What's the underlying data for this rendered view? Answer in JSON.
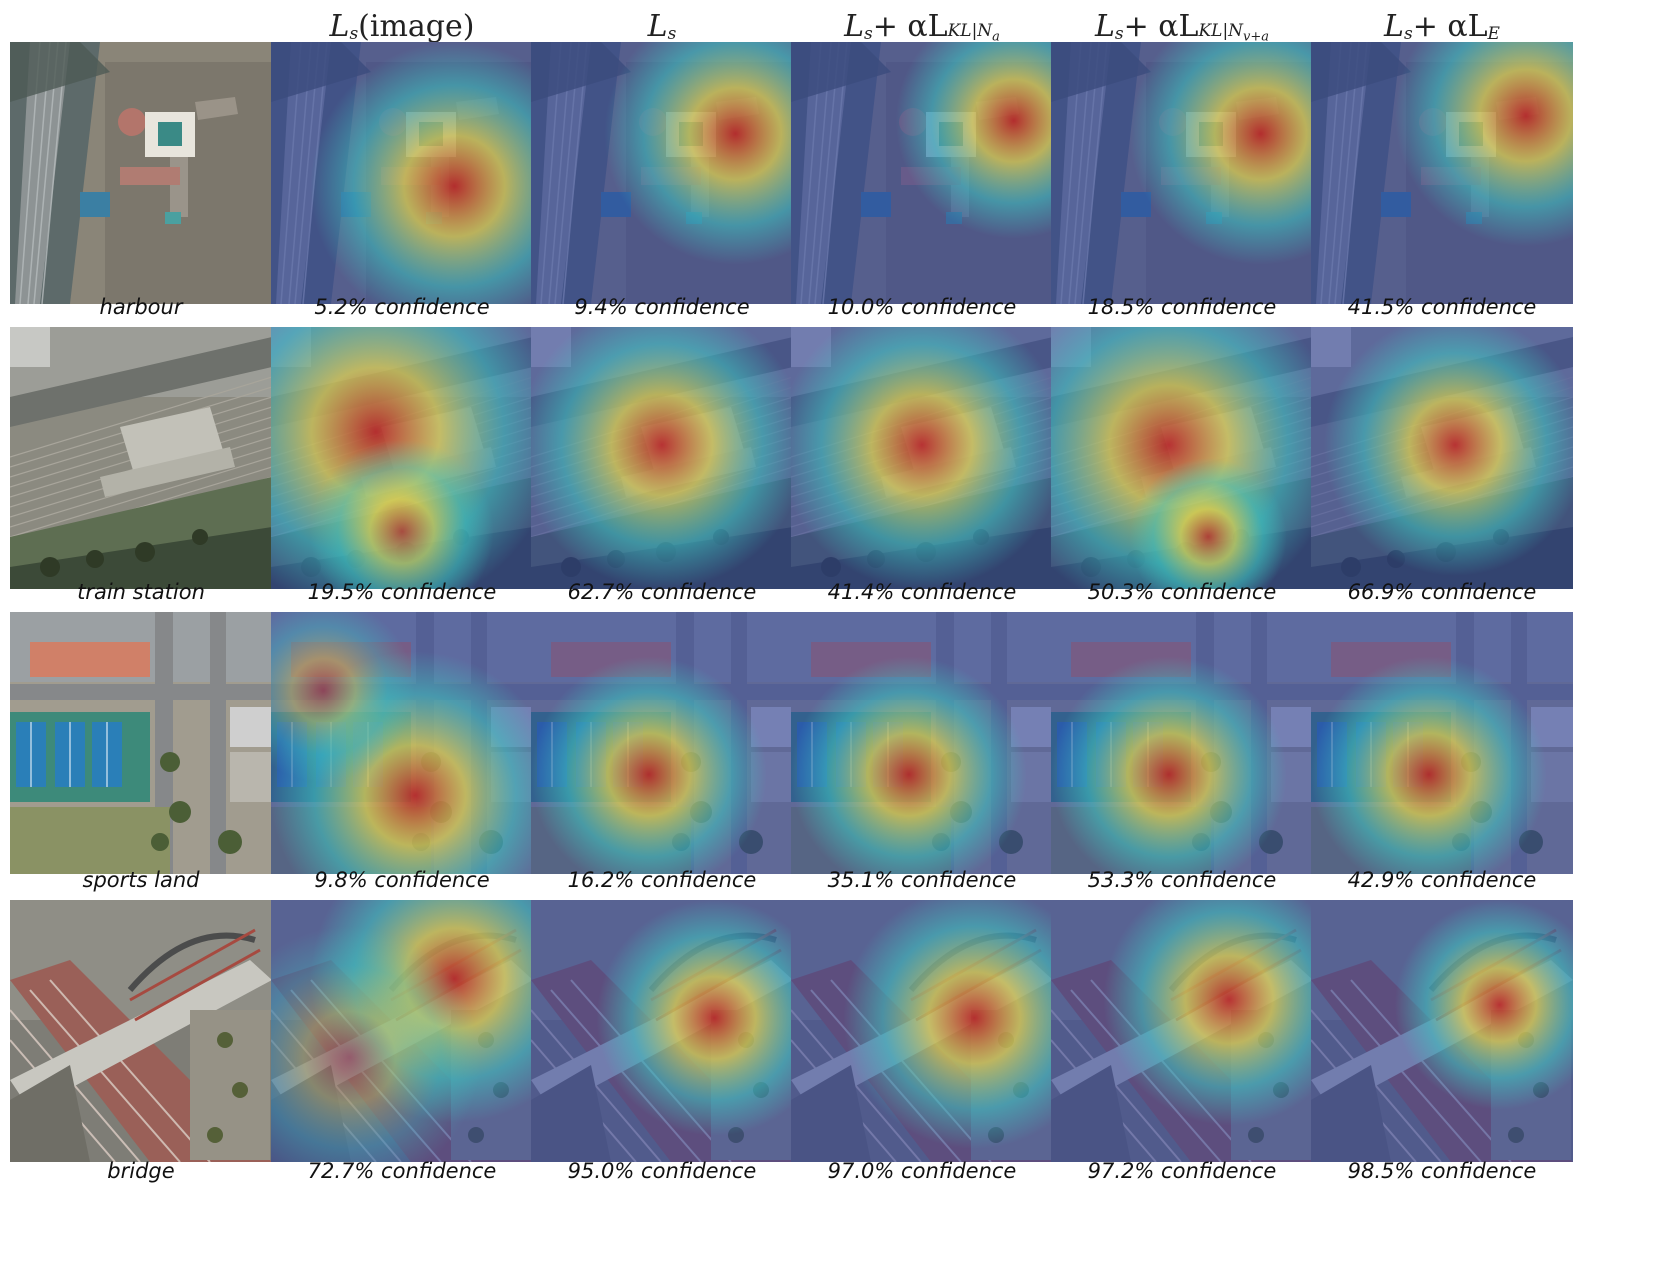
{
  "columns": [
    {
      "id": "image",
      "header_main": "L",
      "header_sub": "s",
      "header_extra": "(image)"
    },
    {
      "id": "ls",
      "header_main": "L",
      "header_sub": "s",
      "header_extra": ""
    },
    {
      "id": "kl_na",
      "header_main": "L",
      "header_sub": "s",
      "header_extra": " + αL",
      "header_extra_sub": "KL|N",
      "header_extra_subsub": "a"
    },
    {
      "id": "kl_nva",
      "header_main": "L",
      "header_sub": "s",
      "header_extra": " + αL",
      "header_extra_sub": "KL|N",
      "header_extra_subsub": "v+a"
    },
    {
      "id": "le",
      "header_main": "L",
      "header_sub": "s",
      "header_extra": " + αL",
      "header_extra_sub": "E"
    }
  ],
  "rows": [
    {
      "label": "harbour",
      "scene": "harbour",
      "confidences": [
        "5.2% confidence",
        "9.4% confidence",
        "10.0% confidence",
        "18.5% confidence",
        "41.5% confidence"
      ],
      "confidence_values": [
        5.2,
        9.4,
        10.0,
        18.5,
        41.5
      ]
    },
    {
      "label": "train station",
      "scene": "train",
      "confidences": [
        "19.5% confidence",
        "62.7% confidence",
        "41.4% confidence",
        "50.3% confidence",
        "66.9% confidence"
      ],
      "confidence_values": [
        19.5,
        62.7,
        41.4,
        50.3,
        66.9
      ]
    },
    {
      "label": "sports land",
      "scene": "sports",
      "confidences": [
        "9.8% confidence",
        "16.2% confidence",
        "35.1% confidence",
        "53.3% confidence",
        "42.9% confidence"
      ],
      "confidence_values": [
        9.8,
        16.2,
        35.1,
        53.3,
        42.9
      ]
    },
    {
      "label": "bridge",
      "scene": "bridge",
      "confidences": [
        "72.7% confidence",
        "95.0% confidence",
        "97.0% confidence",
        "97.2% confidence",
        "98.5% confidence"
      ],
      "confidence_values": [
        72.7,
        95.0,
        97.0,
        97.2,
        98.5
      ]
    }
  ],
  "colors": {
    "heat_low": "#2b3f9e",
    "heat_mid": "#3ec6c0",
    "heat_warm": "#e8d84a",
    "heat_high": "#c4261e"
  }
}
